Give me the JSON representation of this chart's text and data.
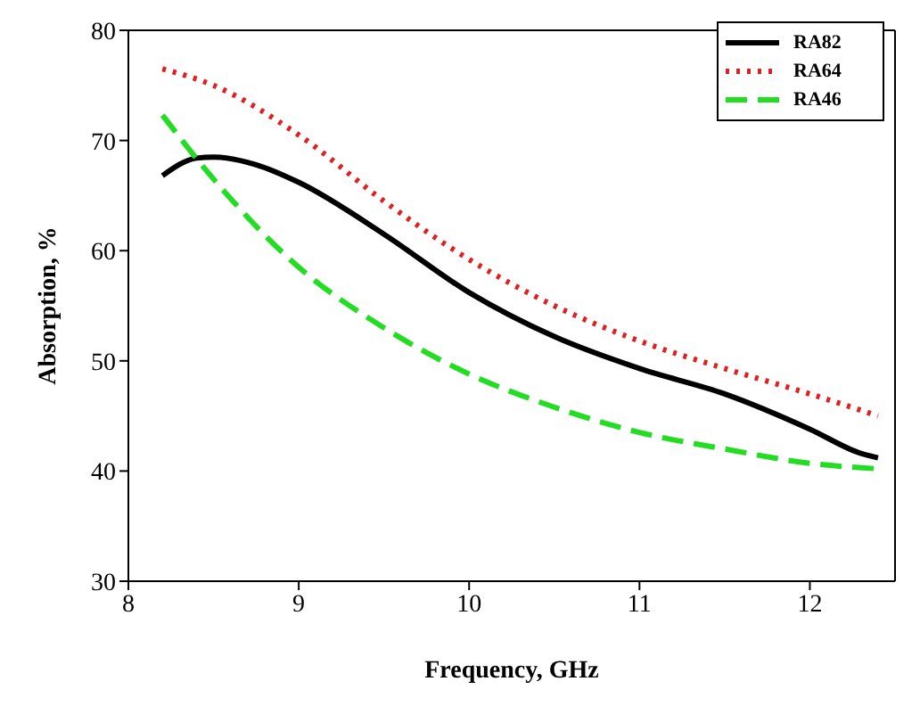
{
  "chart_data": {
    "type": "line",
    "xlabel": "Frequency, GHz",
    "ylabel": "Absorption, %",
    "xlim": [
      8,
      12.5
    ],
    "xticks": [
      8,
      9,
      10,
      11,
      12
    ],
    "ylim": [
      30,
      80
    ],
    "yticks": [
      30,
      40,
      50,
      60,
      70,
      80
    ],
    "grid": false,
    "legend": "top right",
    "marker": "none",
    "series": [
      {
        "name": "RA82",
        "color": "#000000",
        "line_style": "solid",
        "x": [
          8.2,
          8.4,
          8.5,
          8.75,
          9,
          9.5,
          10,
          10.5,
          11,
          11.5,
          12,
          12.3,
          12.4
        ],
        "values": [
          66.8,
          68.4,
          68.5,
          67.8,
          66.2,
          61.5,
          56.2,
          52.2,
          49.3,
          47,
          43.8,
          41.6,
          41.2
        ]
      },
      {
        "name": "RA64",
        "color": "#e02020",
        "line_style": "dotted",
        "x": [
          8.2,
          8.5,
          9,
          9.5,
          10,
          10.5,
          11,
          11.5,
          12,
          12.4
        ],
        "values": [
          76.5,
          75,
          70.5,
          64.5,
          59.2,
          55,
          51.8,
          49.3,
          47,
          45
        ]
      },
      {
        "name": "RA46",
        "color": "#22dd22",
        "line_style": "dashed",
        "x": [
          8.2,
          8.5,
          9,
          9.5,
          10,
          10.5,
          11,
          11.5,
          12,
          12.4
        ],
        "values": [
          72.3,
          66.5,
          58.5,
          53,
          48.8,
          45.8,
          43.5,
          42,
          40.7,
          40.2
        ]
      }
    ]
  }
}
